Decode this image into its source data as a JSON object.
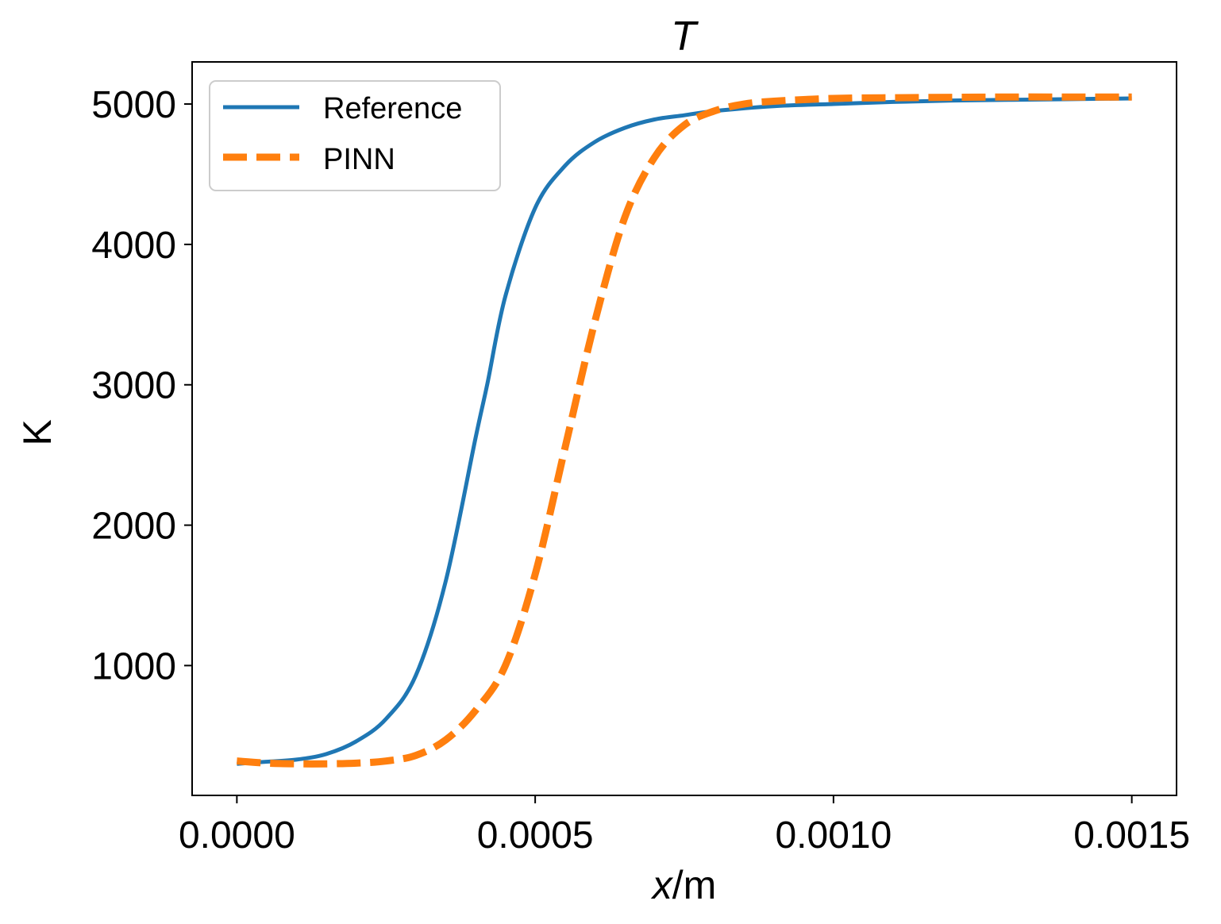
{
  "chart_data": {
    "type": "line",
    "title": "T",
    "xlabel": {
      "italic_part": "x",
      "rest": "/m"
    },
    "ylabel": "K",
    "xlim": [
      -7.5e-05,
      0.001575
    ],
    "ylim": [
      75,
      5300
    ],
    "xticks": [
      0.0,
      0.0005,
      0.001,
      0.0015
    ],
    "xtick_labels": [
      "0.0000",
      "0.0005",
      "0.0010",
      "0.0015"
    ],
    "yticks": [
      1000,
      2000,
      3000,
      4000,
      5000
    ],
    "ytick_labels": [
      "1000",
      "2000",
      "3000",
      "4000",
      "5000"
    ],
    "grid": false,
    "legend_position": "top-left",
    "series": [
      {
        "name": "Reference",
        "style": "solid",
        "color": "#1f77b4",
        "x": [
          0.0,
          5e-05,
          0.0001,
          0.00015,
          0.0002,
          0.00025,
          0.0003,
          0.00035,
          0.0004,
          0.00042,
          0.00045,
          0.0005,
          0.00055,
          0.0006,
          0.00065,
          0.0007,
          0.00075,
          0.0008,
          0.0009,
          0.001,
          0.0011,
          0.0012,
          0.0013,
          0.0014,
          0.0015
        ],
        "y": [
          300,
          315,
          330,
          370,
          460,
          620,
          930,
          1600,
          2620,
          3010,
          3630,
          4260,
          4560,
          4730,
          4830,
          4890,
          4920,
          4950,
          4985,
          5000,
          5015,
          5025,
          5030,
          5035,
          5040
        ]
      },
      {
        "name": "PINN",
        "style": "dashed",
        "color": "#ff7f0e",
        "x": [
          0.0,
          5e-05,
          0.0001,
          0.00015,
          0.0002,
          0.00025,
          0.0003,
          0.00035,
          0.0004,
          0.00045,
          0.0005,
          0.00055,
          0.0006,
          0.00065,
          0.0007,
          0.00075,
          0.0008,
          0.00085,
          0.0009,
          0.001,
          0.0011,
          0.0012,
          0.0013,
          0.0014,
          0.0015
        ],
        "y": [
          320,
          305,
          300,
          300,
          305,
          320,
          360,
          470,
          680,
          1000,
          1650,
          2550,
          3450,
          4190,
          4620,
          4850,
          4950,
          5000,
          5020,
          5040,
          5045,
          5048,
          5050,
          5050,
          5050
        ]
      }
    ]
  }
}
